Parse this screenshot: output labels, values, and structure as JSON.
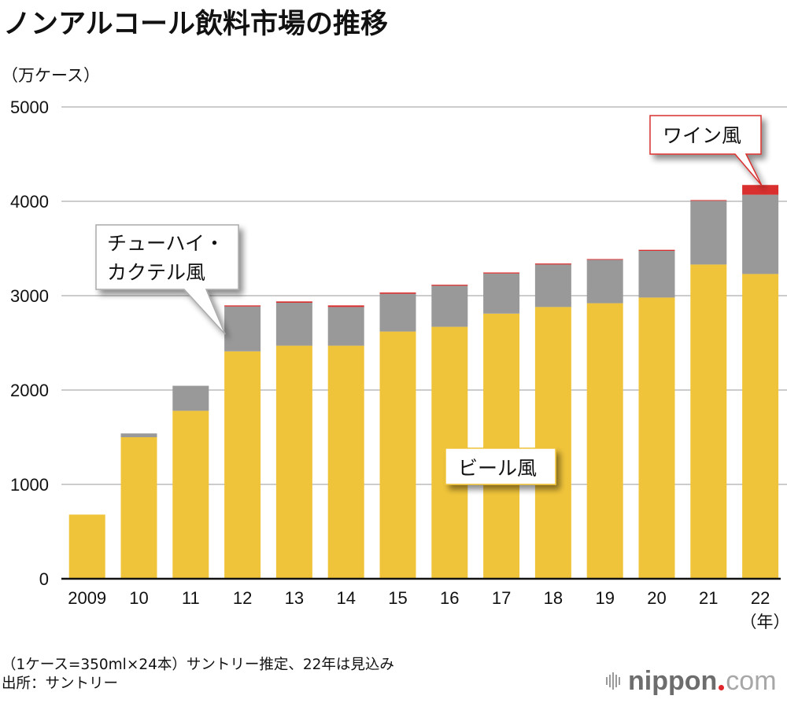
{
  "header": {
    "title": "ノンアルコール飲料市場の推移",
    "unit_label": "（万ケース）"
  },
  "chart_data": {
    "type": "bar",
    "stacked": true,
    "title": "ノンアルコール飲料市場の推移",
    "ylabel": "（万ケース）",
    "xlabel": "（年）",
    "ylim": [
      0,
      5000
    ],
    "yticks": [
      0,
      1000,
      2000,
      3000,
      4000,
      5000
    ],
    "grid": true,
    "categories": [
      "2009",
      "10",
      "11",
      "12",
      "13",
      "14",
      "15",
      "16",
      "17",
      "18",
      "19",
      "20",
      "21",
      "22"
    ],
    "series": [
      {
        "name": "ビール風",
        "color": "#f0c43a",
        "values": [
          680,
          1500,
          1780,
          2410,
          2470,
          2470,
          2620,
          2670,
          2810,
          2880,
          2920,
          2980,
          3330,
          3230
        ]
      },
      {
        "name": "チューハイ・カクテル風",
        "color": "#999999",
        "values": [
          0,
          40,
          265,
          475,
          455,
          410,
          400,
          435,
          425,
          450,
          460,
          495,
          675,
          840
        ]
      },
      {
        "name": "ワイン風",
        "color": "#d9302f",
        "values": [
          0,
          0,
          0,
          12,
          14,
          17,
          14,
          11,
          11,
          11,
          8,
          11,
          8,
          103
        ]
      }
    ],
    "annotations": [
      {
        "text": "チューハイ・\nカクテル風",
        "lines": [
          "チューハイ・",
          "カクテル風"
        ],
        "points_to": "12",
        "border_color": "#aaaaaa"
      },
      {
        "text": "ワイン風",
        "lines": [
          "ワイン風"
        ],
        "points_to": "22",
        "border_color": "#d9302f"
      },
      {
        "text": "ビール風",
        "lines": [
          "ビール風"
        ],
        "border_color": "#f0c43a"
      }
    ]
  },
  "footer": {
    "note": "（1ケース=350ml×24本）サントリー推定、22年は見込み",
    "source": "出所：サントリー"
  },
  "logo": {
    "name": "nippon",
    "tld": "com"
  },
  "colors": {
    "grid": "#cccccc",
    "axis": "#111111"
  }
}
